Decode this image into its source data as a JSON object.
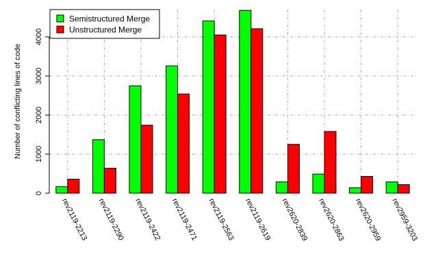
{
  "chart_data": {
    "type": "bar",
    "categories": [
      "rev2119-2213",
      "rev2119-2290",
      "rev2119-2422",
      "rev2119-2471",
      "rev2119-2563",
      "rev2119-2619",
      "rev2620-2839",
      "rev2620-2863",
      "rev2620-2959",
      "rev2959-3203"
    ],
    "series": [
      {
        "name": "Semistructured Merge",
        "values": [
          170,
          1370,
          2750,
          3260,
          4410,
          4680,
          290,
          490,
          140,
          290
        ]
      },
      {
        "name": "Unstructured Merge",
        "values": [
          360,
          640,
          1740,
          2540,
          4050,
          4210,
          1250,
          1580,
          430,
          220
        ]
      }
    ],
    "ylabel": "Number of conflicting lines of code",
    "xlabel": "",
    "ylim": [
      0,
      4700
    ],
    "yticks": [
      0,
      1000,
      2000,
      3000,
      4000
    ],
    "grid": true,
    "legend_position": "top-left",
    "colors": {
      "Semistructured Merge": "#00ff00",
      "Unstructured Merge": "#ff0000",
      "grid": "#aaaaaa",
      "axis": "#000000"
    }
  }
}
